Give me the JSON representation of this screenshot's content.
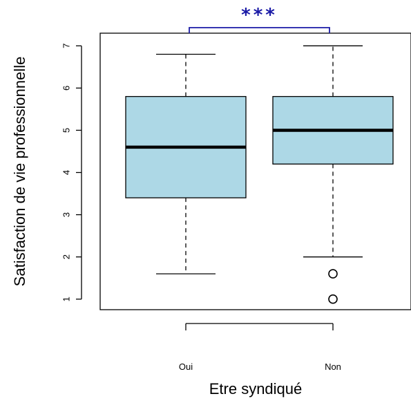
{
  "chart_data": {
    "type": "boxplot",
    "xlabel": "Etre syndiqué",
    "ylabel": "Satisfaction de vie professionnelle",
    "categories": [
      "Oui",
      "Non"
    ],
    "ylim": [
      0.75,
      7.3
    ],
    "yticks": [
      "1",
      "2",
      "3",
      "4",
      "5",
      "6",
      "7"
    ],
    "grid": false,
    "box_color": "#add8e6",
    "boxes": [
      {
        "category": "Oui",
        "whisker_low": 1.6,
        "q1": 3.4,
        "median": 4.6,
        "q3": 5.8,
        "whisker_high": 6.8,
        "outliers": []
      },
      {
        "category": "Non",
        "whisker_low": 2.0,
        "q1": 4.2,
        "median": 5.0,
        "q3": 5.8,
        "whisker_high": 7.0,
        "outliers": [
          1.6,
          1.0
        ]
      }
    ],
    "significance": {
      "label": "***",
      "between": [
        "Oui",
        "Non"
      ],
      "color": "#1a1aa6"
    }
  }
}
